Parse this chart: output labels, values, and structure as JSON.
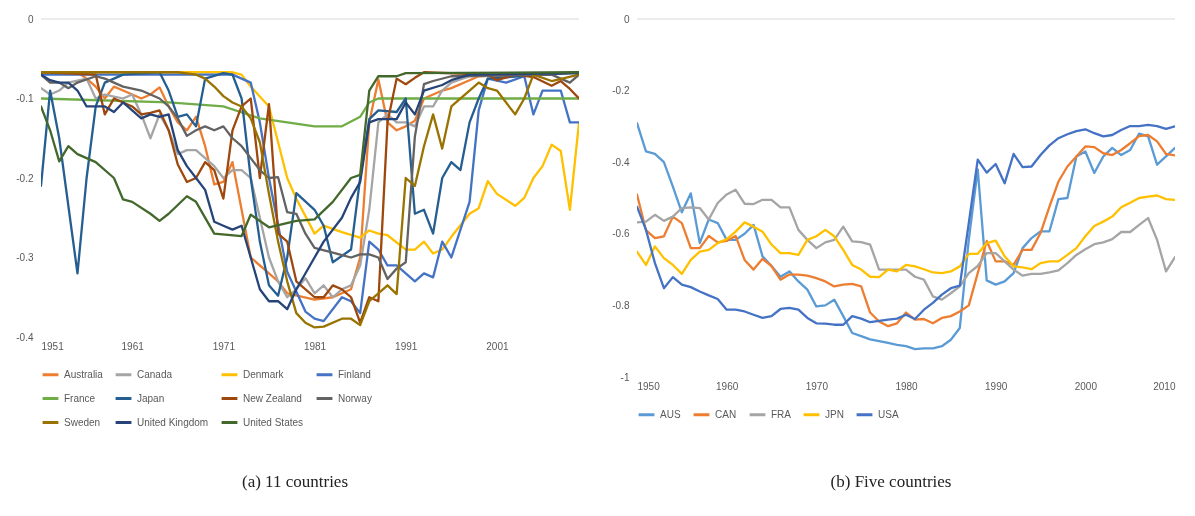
{
  "chart_data": [
    {
      "type": "line",
      "xlim": [
        1951,
        2010
      ],
      "xticks": [
        1951,
        1961,
        1971,
        1981,
        1991,
        2001
      ],
      "ylim": [
        -0.4,
        0
      ],
      "yticks": [
        -0.4,
        -0.3,
        -0.2,
        -0.1,
        0
      ],
      "grid": false,
      "legend": "bottom",
      "line_style": "solid",
      "ref_lines": [
        {
          "axis": "y",
          "value": 0,
          "color": "#d9d9d9"
        }
      ],
      "annotations": [
        "(a) 11 countries"
      ],
      "series": [
        {
          "name": "Australia",
          "color": "#ed7d31",
          "x": [
            1951,
            1955,
            1956,
            1957,
            1958,
            1959,
            1960,
            1962,
            1963,
            1964,
            1965,
            1966,
            1967,
            1968,
            1969,
            1970,
            1971,
            1972,
            1973,
            1974,
            1976,
            1977,
            1978,
            1981,
            1983,
            1985,
            1986,
            1987,
            1988,
            1989,
            1990,
            1991,
            1992,
            1993,
            1994,
            1995,
            1996,
            1998,
            1999,
            2006,
            2010
          ],
          "values": [
            -0.067,
            -0.067,
            -0.075,
            -0.085,
            -0.1,
            -0.085,
            -0.09,
            -0.1,
            -0.095,
            -0.086,
            -0.11,
            -0.13,
            -0.14,
            -0.123,
            -0.16,
            -0.208,
            -0.205,
            -0.18,
            -0.24,
            -0.3,
            -0.32,
            -0.33,
            -0.345,
            -0.353,
            -0.35,
            -0.34,
            -0.3,
            -0.13,
            -0.076,
            -0.13,
            -0.14,
            -0.135,
            -0.128,
            -0.1,
            -0.095,
            -0.09,
            -0.087,
            -0.077,
            -0.072,
            -0.07,
            -0.067
          ]
        },
        {
          "name": "Canada",
          "color": "#a5a5a5",
          "x": [
            1951,
            1952,
            1953,
            1954,
            1956,
            1957,
            1958,
            1960,
            1961,
            1962,
            1963,
            1964,
            1965,
            1966,
            1967,
            1968,
            1969,
            1970,
            1971,
            1972,
            1973,
            1974,
            1975,
            1976,
            1977,
            1978,
            1979,
            1980,
            1981,
            1982,
            1983,
            1984,
            1985,
            1986,
            1987,
            1988,
            1989,
            1990,
            1991,
            1992,
            1993,
            1994,
            1995,
            1996,
            1998,
            2010
          ],
          "values": [
            -0.087,
            -0.095,
            -0.09,
            -0.08,
            -0.075,
            -0.1,
            -0.095,
            -0.1,
            -0.095,
            -0.12,
            -0.15,
            -0.12,
            -0.14,
            -0.17,
            -0.165,
            -0.165,
            -0.175,
            -0.185,
            -0.2,
            -0.19,
            -0.19,
            -0.2,
            -0.25,
            -0.3,
            -0.33,
            -0.35,
            -0.34,
            -0.326,
            -0.345,
            -0.335,
            -0.35,
            -0.34,
            -0.335,
            -0.31,
            -0.24,
            -0.13,
            -0.12,
            -0.13,
            -0.13,
            -0.135,
            -0.11,
            -0.11,
            -0.09,
            -0.08,
            -0.072,
            -0.068
          ]
        },
        {
          "name": "Denmark",
          "color": "#ffc000",
          "x": [
            1951,
            1972,
            1973,
            1974,
            1976,
            1978,
            1979,
            1981,
            1982,
            1984,
            1986,
            1987,
            1988,
            1989,
            1991,
            1992,
            1993,
            1994,
            1995,
            1996,
            1998,
            1999,
            2000,
            2001,
            2003,
            2004,
            2005,
            2006,
            2007,
            2008,
            2009,
            2010
          ],
          "values": [
            -0.067,
            -0.067,
            -0.07,
            -0.085,
            -0.11,
            -0.2,
            -0.226,
            -0.27,
            -0.26,
            -0.268,
            -0.275,
            -0.266,
            -0.27,
            -0.272,
            -0.29,
            -0.29,
            -0.28,
            -0.295,
            -0.29,
            -0.274,
            -0.245,
            -0.238,
            -0.204,
            -0.22,
            -0.235,
            -0.225,
            -0.2,
            -0.185,
            -0.158,
            -0.166,
            -0.24,
            -0.13
          ]
        },
        {
          "name": "Finland",
          "color": "#4472c4",
          "x": [
            1951,
            1972,
            1974,
            1975,
            1976,
            1978,
            1980,
            1981,
            1982,
            1984,
            1985,
            1986,
            1987,
            1988,
            1989,
            1990,
            1992,
            1993,
            1994,
            1995,
            1996,
            1998,
            1999,
            2000,
            2002,
            2004,
            2005,
            2006,
            2008,
            2009,
            2010
          ],
          "values": [
            -0.07,
            -0.07,
            -0.08,
            -0.13,
            -0.2,
            -0.318,
            -0.368,
            -0.377,
            -0.38,
            -0.35,
            -0.355,
            -0.37,
            -0.28,
            -0.29,
            -0.31,
            -0.31,
            -0.33,
            -0.32,
            -0.325,
            -0.28,
            -0.3,
            -0.23,
            -0.115,
            -0.075,
            -0.08,
            -0.072,
            -0.12,
            -0.09,
            -0.09,
            -0.13,
            -0.13
          ]
        },
        {
          "name": "France",
          "color": "#70ad47",
          "x": [
            1951,
            1965,
            1971,
            1975,
            1978,
            1981,
            1984,
            1986,
            1987,
            1988,
            2010
          ],
          "values": [
            -0.1,
            -0.105,
            -0.11,
            -0.125,
            -0.13,
            -0.135,
            -0.135,
            -0.123,
            -0.105,
            -0.1,
            -0.1
          ]
        },
        {
          "name": "Japan",
          "color": "#255e91",
          "x": [
            1951,
            1952,
            1953,
            1955,
            1956,
            1957,
            1958,
            1960,
            1964,
            1965,
            1966,
            1967,
            1968,
            1969,
            1971,
            1972,
            1973,
            1974,
            1975,
            1976,
            1977,
            1978,
            1979,
            1981,
            1982,
            1983,
            1985,
            1986,
            1987,
            1988,
            1990,
            1991,
            1992,
            1993,
            1994,
            1995,
            1996,
            1997,
            1998,
            1999,
            2000,
            2010
          ],
          "values": [
            -0.21,
            -0.09,
            -0.15,
            -0.32,
            -0.2,
            -0.11,
            -0.08,
            -0.07,
            -0.067,
            -0.09,
            -0.123,
            -0.12,
            -0.135,
            -0.075,
            -0.068,
            -0.07,
            -0.1,
            -0.2,
            -0.28,
            -0.335,
            -0.348,
            -0.3,
            -0.219,
            -0.24,
            -0.26,
            -0.306,
            -0.29,
            -0.2,
            -0.126,
            -0.115,
            -0.117,
            -0.1,
            -0.245,
            -0.24,
            -0.27,
            -0.2,
            -0.18,
            -0.19,
            -0.13,
            -0.1,
            -0.075,
            -0.067
          ]
        },
        {
          "name": "New Zealand",
          "color": "#9e480e",
          "x": [
            1951,
            1957,
            1958,
            1959,
            1960,
            1961,
            1962,
            1963,
            1964,
            1965,
            1966,
            1967,
            1968,
            1969,
            1970,
            1971,
            1972,
            1973,
            1974,
            1975,
            1976,
            1977,
            1978,
            1979,
            1981,
            1982,
            1983,
            1984,
            1985,
            1986,
            1987,
            1988,
            1989,
            1990,
            1991,
            1992,
            1993,
            2000,
            2001,
            2003,
            2005,
            2007,
            2008,
            2009,
            2010
          ],
          "values": [
            -0.067,
            -0.07,
            -0.12,
            -0.1,
            -0.105,
            -0.11,
            -0.12,
            -0.118,
            -0.115,
            -0.14,
            -0.183,
            -0.205,
            -0.2,
            -0.18,
            -0.19,
            -0.226,
            -0.14,
            -0.11,
            -0.1,
            -0.2,
            -0.107,
            -0.27,
            -0.28,
            -0.33,
            -0.35,
            -0.35,
            -0.335,
            -0.34,
            -0.35,
            -0.382,
            -0.35,
            -0.355,
            -0.13,
            -0.075,
            -0.082,
            -0.074,
            -0.067,
            -0.07,
            -0.077,
            -0.07,
            -0.073,
            -0.084,
            -0.078,
            -0.088,
            -0.1
          ]
        },
        {
          "name": "Norway",
          "color": "#636363",
          "x": [
            1951,
            1952,
            1953,
            1954,
            1955,
            1957,
            1958,
            1960,
            1962,
            1964,
            1965,
            1966,
            1967,
            1968,
            1969,
            1970,
            1971,
            1972,
            1973,
            1974,
            1975,
            1976,
            1977,
            1978,
            1979,
            1980,
            1981,
            1983,
            1985,
            1986,
            1987,
            1988,
            1989,
            1990,
            1991,
            1992,
            1993,
            1994,
            1996,
            2007,
            2009,
            2010
          ],
          "values": [
            -0.07,
            -0.08,
            -0.08,
            -0.087,
            -0.08,
            -0.072,
            -0.075,
            -0.085,
            -0.09,
            -0.1,
            -0.11,
            -0.125,
            -0.147,
            -0.14,
            -0.135,
            -0.14,
            -0.135,
            -0.15,
            -0.16,
            -0.175,
            -0.19,
            -0.2,
            -0.199,
            -0.243,
            -0.245,
            -0.27,
            -0.288,
            -0.294,
            -0.3,
            -0.296,
            -0.296,
            -0.3,
            -0.327,
            -0.314,
            -0.306,
            -0.148,
            -0.082,
            -0.078,
            -0.072,
            -0.07,
            -0.08,
            -0.07
          ]
        },
        {
          "name": "Sweden",
          "color": "#997300",
          "x": [
            1951,
            1966,
            1968,
            1969,
            1970,
            1971,
            1972,
            1973,
            1974,
            1975,
            1976,
            1977,
            1978,
            1979,
            1980,
            1981,
            1982,
            1984,
            1985,
            1986,
            1987,
            1988,
            1989,
            1990,
            1991,
            1992,
            1993,
            1994,
            1995,
            1996,
            1998,
            1999,
            2000,
            2001,
            2003,
            2004,
            2005,
            2007,
            2010
          ],
          "values": [
            -0.067,
            -0.067,
            -0.07,
            -0.075,
            -0.085,
            -0.097,
            -0.105,
            -0.11,
            -0.125,
            -0.155,
            -0.22,
            -0.28,
            -0.33,
            -0.37,
            -0.382,
            -0.388,
            -0.387,
            -0.377,
            -0.377,
            -0.385,
            -0.355,
            -0.345,
            -0.335,
            -0.346,
            -0.2,
            -0.21,
            -0.16,
            -0.12,
            -0.163,
            -0.11,
            -0.09,
            -0.08,
            -0.087,
            -0.09,
            -0.12,
            -0.1,
            -0.07,
            -0.078,
            -0.07
          ]
        },
        {
          "name": "United Kingdom",
          "color": "#264478",
          "x": [
            1951,
            1952,
            1953,
            1954,
            1955,
            1956,
            1957,
            1958,
            1959,
            1960,
            1961,
            1962,
            1963,
            1964,
            1965,
            1966,
            1967,
            1968,
            1969,
            1970,
            1971,
            1972,
            1973,
            1974,
            1975,
            1976,
            1977,
            1978,
            1979,
            1981,
            1982,
            1984,
            1985,
            1986,
            1987,
            1988,
            1990,
            1991,
            1992,
            1993,
            1995,
            1996,
            1998,
            2010
          ],
          "values": [
            -0.07,
            -0.077,
            -0.08,
            -0.08,
            -0.09,
            -0.11,
            -0.11,
            -0.11,
            -0.117,
            -0.105,
            -0.115,
            -0.125,
            -0.12,
            -0.123,
            -0.12,
            -0.165,
            -0.185,
            -0.2,
            -0.215,
            -0.255,
            -0.26,
            -0.265,
            -0.26,
            -0.3,
            -0.34,
            -0.355,
            -0.355,
            -0.365,
            -0.34,
            -0.3,
            -0.28,
            -0.25,
            -0.225,
            -0.205,
            -0.13,
            -0.126,
            -0.126,
            -0.105,
            -0.12,
            -0.09,
            -0.083,
            -0.077,
            -0.07,
            -0.068
          ]
        },
        {
          "name": "United States",
          "color": "#43682b",
          "x": [
            1951,
            1952,
            1953,
            1954,
            1955,
            1957,
            1959,
            1960,
            1961,
            1963,
            1964,
            1965,
            1967,
            1968,
            1970,
            1973,
            1974,
            1976,
            1979,
            1981,
            1983,
            1985,
            1986,
            1987,
            1988,
            1990,
            1991,
            2010
          ],
          "values": [
            -0.11,
            -0.14,
            -0.179,
            -0.16,
            -0.17,
            -0.18,
            -0.2,
            -0.227,
            -0.23,
            -0.245,
            -0.254,
            -0.245,
            -0.223,
            -0.23,
            -0.27,
            -0.273,
            -0.246,
            -0.262,
            -0.254,
            -0.252,
            -0.23,
            -0.2,
            -0.196,
            -0.09,
            -0.072,
            -0.072,
            -0.068,
            -0.067
          ]
        }
      ]
    },
    {
      "type": "line",
      "xlim": [
        1950,
        2010
      ],
      "xticks": [
        1950,
        1960,
        1970,
        1980,
        1990,
        2000,
        2010
      ],
      "ylim": [
        -1,
        0
      ],
      "yticks": [
        -1,
        -0.8,
        -0.6,
        -0.4,
        -0.2,
        0
      ],
      "grid": false,
      "legend": "bottom",
      "line_style": "solid",
      "ref_lines": [
        {
          "axis": "y",
          "value": 0,
          "color": "#d9d9d9"
        }
      ],
      "annotations": [
        "(b) Five countries"
      ],
      "x": [
        1950,
        1951,
        1952,
        1953,
        1954,
        1955,
        1956,
        1957,
        1958,
        1959,
        1960,
        1961,
        1962,
        1963,
        1964,
        1965,
        1966,
        1967,
        1968,
        1969,
        1970,
        1971,
        1972,
        1973,
        1974,
        1975,
        1976,
        1977,
        1978,
        1979,
        1980,
        1981,
        1982,
        1983,
        1984,
        1985,
        1986,
        1987,
        1988,
        1989,
        1990,
        1991,
        1992,
        1993,
        1994,
        1995,
        1996,
        1997,
        1998,
        1999,
        2000,
        2001,
        2002,
        2003,
        2004,
        2005,
        2006,
        2007,
        2008,
        2009,
        2010
      ],
      "series": [
        {
          "name": "AUS",
          "color": "#5b9bd5",
          "values": [
            -0.291,
            -0.37,
            -0.377,
            -0.4,
            -0.468,
            -0.54,
            -0.487,
            -0.626,
            -0.56,
            -0.57,
            -0.617,
            -0.617,
            -0.6,
            -0.575,
            -0.663,
            -0.69,
            -0.72,
            -0.705,
            -0.733,
            -0.756,
            -0.803,
            -0.8,
            -0.784,
            -0.83,
            -0.877,
            -0.886,
            -0.895,
            -0.9,
            -0.905,
            -0.91,
            -0.914,
            -0.922,
            -0.92,
            -0.92,
            -0.914,
            -0.896,
            -0.863,
            -0.617,
            -0.42,
            -0.73,
            -0.742,
            -0.733,
            -0.71,
            -0.64,
            -0.612,
            -0.593,
            -0.593,
            -0.503,
            -0.5,
            -0.384,
            -0.37,
            -0.43,
            -0.384,
            -0.36,
            -0.38,
            -0.366,
            -0.32,
            -0.328,
            -0.407,
            -0.384,
            -0.36
          ]
        },
        {
          "name": "CAN",
          "color": "#ed7d31",
          "values": [
            -0.49,
            -0.59,
            -0.612,
            -0.607,
            -0.552,
            -0.57,
            -0.64,
            -0.64,
            -0.606,
            -0.624,
            -0.62,
            -0.606,
            -0.673,
            -0.7,
            -0.67,
            -0.69,
            -0.728,
            -0.714,
            -0.714,
            -0.717,
            -0.724,
            -0.733,
            -0.747,
            -0.742,
            -0.74,
            -0.747,
            -0.82,
            -0.845,
            -0.858,
            -0.85,
            -0.82,
            -0.84,
            -0.838,
            -0.85,
            -0.835,
            -0.83,
            -0.817,
            -0.8,
            -0.71,
            -0.62,
            -0.677,
            -0.677,
            -0.687,
            -0.645,
            -0.645,
            -0.598,
            -0.524,
            -0.454,
            -0.412,
            -0.384,
            -0.356,
            -0.358,
            -0.375,
            -0.38,
            -0.366,
            -0.347,
            -0.327,
            -0.324,
            -0.342,
            -0.377,
            -0.381
          ]
        },
        {
          "name": "FRA",
          "color": "#a5a5a5",
          "values": [
            -0.568,
            -0.566,
            -0.547,
            -0.564,
            -0.552,
            -0.528,
            -0.526,
            -0.528,
            -0.56,
            -0.514,
            -0.49,
            -0.477,
            -0.516,
            -0.517,
            -0.505,
            -0.505,
            -0.526,
            -0.526,
            -0.589,
            -0.617,
            -0.64,
            -0.624,
            -0.617,
            -0.58,
            -0.621,
            -0.623,
            -0.63,
            -0.7,
            -0.7,
            -0.7,
            -0.7,
            -0.72,
            -0.728,
            -0.775,
            -0.784,
            -0.766,
            -0.747,
            -0.71,
            -0.69,
            -0.654,
            -0.654,
            -0.677,
            -0.7,
            -0.717,
            -0.712,
            -0.712,
            -0.708,
            -0.702,
            -0.682,
            -0.659,
            -0.643,
            -0.629,
            -0.624,
            -0.615,
            -0.595,
            -0.595,
            -0.575,
            -0.556,
            -0.617,
            -0.705,
            -0.665
          ]
        },
        {
          "name": "JPN",
          "color": "#ffc000",
          "values": [
            -0.65,
            -0.687,
            -0.635,
            -0.668,
            -0.687,
            -0.712,
            -0.673,
            -0.65,
            -0.645,
            -0.626,
            -0.615,
            -0.594,
            -0.568,
            -0.58,
            -0.594,
            -0.63,
            -0.654,
            -0.654,
            -0.659,
            -0.617,
            -0.607,
            -0.589,
            -0.607,
            -0.645,
            -0.687,
            -0.7,
            -0.72,
            -0.721,
            -0.7,
            -0.705,
            -0.687,
            -0.691,
            -0.699,
            -0.708,
            -0.71,
            -0.705,
            -0.691,
            -0.656,
            -0.656,
            -0.626,
            -0.619,
            -0.663,
            -0.691,
            -0.694,
            -0.699,
            -0.682,
            -0.677,
            -0.677,
            -0.659,
            -0.64,
            -0.607,
            -0.578,
            -0.566,
            -0.552,
            -0.526,
            -0.513,
            -0.5,
            -0.496,
            -0.493,
            -0.503,
            -0.505
          ]
        },
        {
          "name": "USA",
          "color": "#4472c4",
          "values": [
            -0.524,
            -0.589,
            -0.682,
            -0.752,
            -0.721,
            -0.742,
            -0.749,
            -0.761,
            -0.772,
            -0.782,
            -0.812,
            -0.812,
            -0.817,
            -0.826,
            -0.835,
            -0.83,
            -0.81,
            -0.807,
            -0.812,
            -0.835,
            -0.85,
            -0.851,
            -0.854,
            -0.854,
            -0.83,
            -0.837,
            -0.847,
            -0.843,
            -0.84,
            -0.837,
            -0.826,
            -0.838,
            -0.812,
            -0.793,
            -0.77,
            -0.752,
            -0.745,
            -0.57,
            -0.393,
            -0.429,
            -0.405,
            -0.459,
            -0.377,
            -0.414,
            -0.412,
            -0.38,
            -0.353,
            -0.333,
            -0.322,
            -0.313,
            -0.308,
            -0.319,
            -0.328,
            -0.324,
            -0.31,
            -0.299,
            -0.299,
            -0.296,
            -0.299,
            -0.307,
            -0.3
          ]
        }
      ]
    }
  ]
}
